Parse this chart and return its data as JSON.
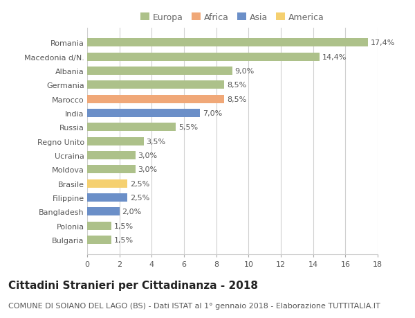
{
  "countries": [
    "Romania",
    "Macedonia d/N.",
    "Albania",
    "Germania",
    "Marocco",
    "India",
    "Russia",
    "Regno Unito",
    "Ucraina",
    "Moldova",
    "Brasile",
    "Filippine",
    "Bangladesh",
    "Polonia",
    "Bulgaria"
  ],
  "values": [
    17.4,
    14.4,
    9.0,
    8.5,
    8.5,
    7.0,
    5.5,
    3.5,
    3.0,
    3.0,
    2.5,
    2.5,
    2.0,
    1.5,
    1.5
  ],
  "continents": [
    "Europa",
    "Europa",
    "Europa",
    "Europa",
    "Africa",
    "Asia",
    "Europa",
    "Europa",
    "Europa",
    "Europa",
    "America",
    "Asia",
    "Asia",
    "Europa",
    "Europa"
  ],
  "labels": [
    "17,4%",
    "14,4%",
    "9,0%",
    "8,5%",
    "8,5%",
    "7,0%",
    "5,5%",
    "3,5%",
    "3,0%",
    "3,0%",
    "2,5%",
    "2,5%",
    "2,0%",
    "1,5%",
    "1,5%"
  ],
  "colors": {
    "Africa": "#f0a878",
    "Asia": "#6b8fc8",
    "America": "#f5d070"
  },
  "colors2": {
    "Europa": "#adc18a",
    "Africa": "#f0a878",
    "Asia": "#6b8fc8",
    "America": "#f5d070"
  },
  "legend_order": [
    "Europa",
    "Africa",
    "Asia",
    "America"
  ],
  "xlim": [
    0,
    18
  ],
  "xticks": [
    0,
    2,
    4,
    6,
    8,
    10,
    12,
    14,
    16,
    18
  ],
  "title": "Cittadini Stranieri per Cittadinanza - 2018",
  "subtitle": "COMUNE DI SOIANO DEL LAGO (BS) - Dati ISTAT al 1° gennaio 2018 - Elaborazione TUTTITALIA.IT",
  "background_color": "#ffffff",
  "grid_color": "#d0d0d0",
  "bar_height": 0.6,
  "title_fontsize": 11,
  "subtitle_fontsize": 8,
  "label_fontsize": 8,
  "tick_fontsize": 8
}
